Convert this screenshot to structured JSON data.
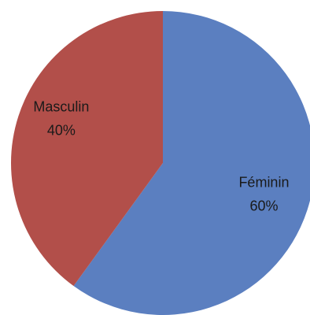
{
  "chart_data": {
    "type": "pie",
    "categories": [
      "Féminin",
      "Masculin"
    ],
    "values": [
      60,
      40
    ],
    "percent_labels": [
      "60%",
      "40%"
    ],
    "colors": [
      "#5B7FC0",
      "#B24F4A"
    ],
    "start": "top, clockwise",
    "legend": "none",
    "data_labels": "category name and percentage inside each slice"
  }
}
